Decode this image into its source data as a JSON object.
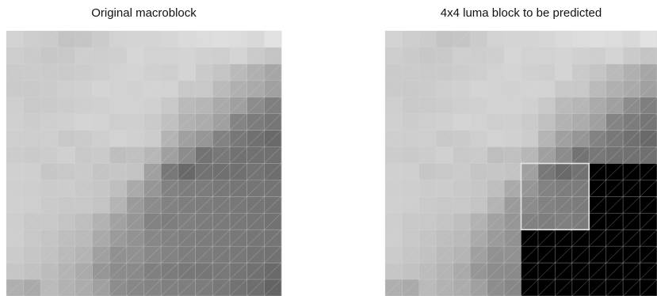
{
  "titles": {
    "left": "Original macroblock",
    "right": "4x4 luma block to be predicted"
  },
  "macroblock_size": 16,
  "colors": {
    "grid_line": "#d8d8d8",
    "highlight_border": "#e6e6e6",
    "masked": "#000000"
  },
  "luma_original": [
    [
      210,
      205,
      203,
      195,
      197,
      203,
      210,
      212,
      212,
      214,
      218,
      220,
      222,
      220,
      216,
      226
    ],
    [
      205,
      202,
      199,
      200,
      206,
      205,
      206,
      214,
      210,
      210,
      212,
      208,
      206,
      212,
      202,
      196
    ],
    [
      202,
      203,
      202,
      202,
      204,
      206,
      210,
      212,
      208,
      206,
      212,
      202,
      196,
      186,
      176,
      166
    ],
    [
      202,
      201,
      203,
      206,
      208,
      212,
      210,
      209,
      211,
      210,
      200,
      200,
      186,
      176,
      170,
      160
    ],
    [
      206,
      201,
      202,
      204,
      206,
      208,
      210,
      210,
      208,
      200,
      186,
      182,
      170,
      160,
      140,
      127
    ],
    [
      208,
      204,
      206,
      208,
      212,
      210,
      206,
      207,
      202,
      192,
      178,
      172,
      160,
      132,
      124,
      118
    ],
    [
      206,
      205,
      206,
      200,
      202,
      206,
      210,
      208,
      204,
      180,
      160,
      150,
      130,
      120,
      112,
      105
    ],
    [
      204,
      202,
      204,
      208,
      200,
      202,
      190,
      192,
      183,
      160,
      140,
      115,
      120,
      114,
      113,
      112
    ],
    [
      208,
      207,
      198,
      200,
      202,
      196,
      198,
      195,
      160,
      120,
      105,
      114,
      112,
      112,
      116,
      110
    ],
    [
      207,
      205,
      203,
      204,
      200,
      198,
      190,
      170,
      150,
      130,
      125,
      124,
      120,
      118,
      117,
      116
    ],
    [
      208,
      206,
      202,
      200,
      200,
      196,
      180,
      155,
      140,
      130,
      126,
      124,
      122,
      120,
      117,
      115
    ],
    [
      205,
      200,
      200,
      196,
      190,
      178,
      162,
      150,
      130,
      126,
      128,
      124,
      122,
      120,
      118,
      114
    ],
    [
      206,
      200,
      196,
      190,
      186,
      170,
      155,
      146,
      135,
      130,
      126,
      124,
      122,
      120,
      118,
      117
    ],
    [
      203,
      198,
      194,
      186,
      180,
      160,
      145,
      145,
      136,
      130,
      126,
      124,
      122,
      120,
      116,
      114
    ],
    [
      198,
      194,
      188,
      180,
      170,
      150,
      140,
      138,
      128,
      124,
      120,
      118,
      120,
      117,
      113,
      106
    ],
    [
      175,
      170,
      186,
      178,
      172,
      160,
      141,
      135,
      132,
      128,
      126,
      124,
      120,
      114,
      110,
      100
    ]
  ],
  "prediction_block": {
    "row": 8,
    "col": 8,
    "size": 4
  },
  "masked_region_rule": "blocks_after_current_in_raster_order"
}
